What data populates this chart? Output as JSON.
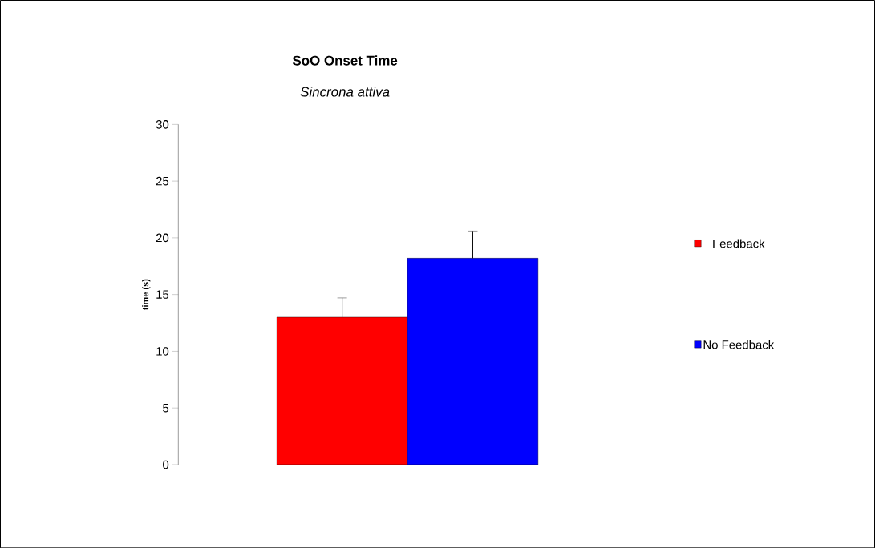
{
  "chart_data": {
    "type": "bar",
    "title": "SoO Onset Time",
    "subtitle": "Sincrona attiva",
    "ylabel": "time (s)",
    "categories": [
      null
    ],
    "series": [
      {
        "name": "Feedback",
        "color": "#ff0000",
        "values": [
          13
        ],
        "errors": [
          1.7
        ]
      },
      {
        "name": "No Feedback",
        "color": "#0000ff",
        "values": [
          18.2
        ],
        "errors": [
          2.4
        ]
      }
    ],
    "ylim": [
      0,
      30
    ],
    "yticks": [
      0,
      5,
      10,
      15,
      20,
      25,
      30
    ],
    "legend": "right",
    "grid": false
  }
}
